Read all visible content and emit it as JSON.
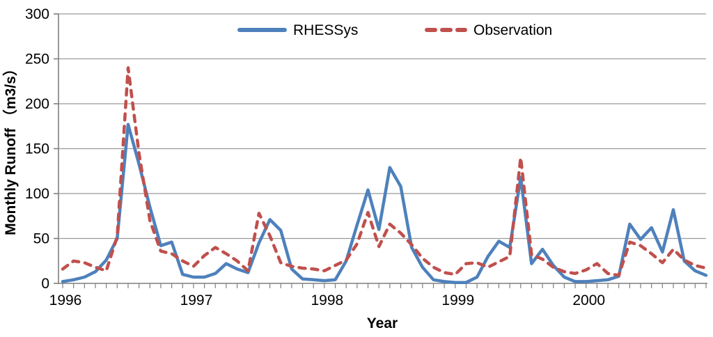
{
  "chart_data": {
    "type": "line",
    "title": "",
    "xlabel": "Year",
    "ylabel": "Monthly Runoff （m3/s）",
    "ylim": [
      0,
      300
    ],
    "yticks": [
      0,
      50,
      100,
      150,
      200,
      250,
      300
    ],
    "x_years": [
      "1996",
      "1997",
      "1998",
      "1999",
      "2000"
    ],
    "x_unit": "month",
    "points_per_year": 12,
    "grid": "horizontal-only",
    "legend_position": "top-center",
    "axis_color": "#7f7f7f",
    "grid_color": "#9a9a9a",
    "series": [
      {
        "name": "RHESSys",
        "color": "#4E81BC",
        "style": "solid",
        "values": [
          2,
          4,
          7,
          13,
          26,
          50,
          177,
          133,
          85,
          42,
          46,
          10,
          7,
          7,
          11,
          22,
          16,
          12,
          45,
          71,
          59,
          16,
          5,
          4,
          3,
          4,
          25,
          65,
          104,
          60,
          129,
          108,
          40,
          18,
          4,
          2,
          1,
          1,
          7,
          30,
          47,
          40,
          118,
          22,
          38,
          20,
          7,
          2,
          2,
          3,
          4,
          8,
          66,
          49,
          62,
          35,
          82,
          25,
          14,
          9
        ]
      },
      {
        "name": "Observation",
        "color": "#C0504D",
        "style": "dashed",
        "values": [
          16,
          25,
          23,
          18,
          14,
          52,
          240,
          145,
          70,
          36,
          33,
          25,
          19,
          31,
          40,
          33,
          25,
          14,
          78,
          53,
          23,
          19,
          17,
          16,
          14,
          20,
          26,
          44,
          79,
          41,
          66,
          56,
          43,
          28,
          18,
          12,
          10,
          22,
          23,
          18,
          24,
          30,
          140,
          32,
          27,
          18,
          13,
          11,
          15,
          22,
          11,
          9,
          46,
          42,
          33,
          23,
          38,
          26,
          20,
          17
        ]
      }
    ]
  }
}
